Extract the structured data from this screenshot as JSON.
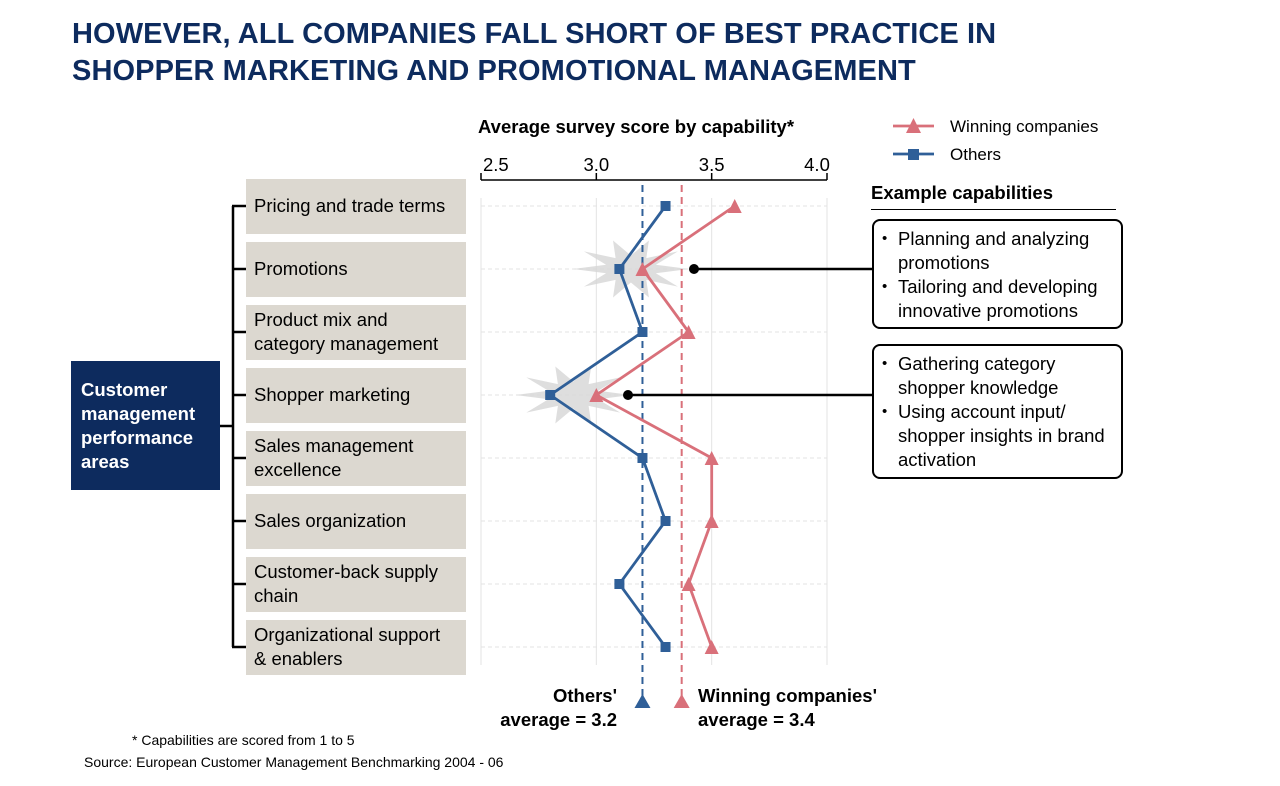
{
  "title": {
    "line1": "HOWEVER, ALL COMPANIES FALL SHORT OF BEST PRACTICE IN",
    "line2": "SHOPPER MARKETING AND PROMOTIONAL MANAGEMENT"
  },
  "group_label": [
    "Customer",
    "management",
    "performance",
    "areas"
  ],
  "legend": {
    "winning": "Winning companies",
    "others": "Others"
  },
  "example": {
    "title": "Example capabilities",
    "promotions": [
      "Planning and analyzing promotions",
      "Tailoring and developing innovative promotions"
    ],
    "shopper": [
      "Gathering category shopper knowledge",
      "Using account input/ shopper insights in brand activation"
    ]
  },
  "averages": {
    "others_label_1": "Others'",
    "others_label_2": "average = 3.2",
    "winning_label_1": "Winning companies'",
    "winning_label_2": "average  =  3.4"
  },
  "footnotes": {
    "note": "* Capabilities are scored from 1 to 5",
    "source": "Source: European Customer Management Benchmarking 2004 - 06"
  },
  "colors": {
    "winning": "#d9707a",
    "others": "#2f5f98",
    "navy": "#0d2b5e",
    "box": "#dcd8d0"
  },
  "chart_data": {
    "type": "line",
    "orientation": "horizontal",
    "title": "Average survey score by capability*",
    "xlim": [
      2.5,
      4.0
    ],
    "xticks": [
      2.5,
      3.0,
      3.5,
      4.0
    ],
    "tick_labels": [
      "2.5",
      "3.0",
      "3.5",
      "4.0"
    ],
    "categories": [
      "Pricing and trade terms",
      "Promotions",
      "Product mix and category management",
      "Shopper marketing",
      "Sales management excellence",
      "Sales organization",
      "Customer-back supply chain",
      "Organizational support & enablers"
    ],
    "category_lines": [
      [
        "Pricing and trade terms"
      ],
      [
        "Promotions"
      ],
      [
        "Product mix and",
        "category management"
      ],
      [
        "Shopper marketing"
      ],
      [
        "Sales management",
        "excellence"
      ],
      [
        "Sales organization"
      ],
      [
        "Customer-back supply",
        "chain"
      ],
      [
        "Organizational support",
        "& enablers"
      ]
    ],
    "series": [
      {
        "name": "Winning companies",
        "marker": "triangle",
        "color": "#d9707a",
        "values": [
          3.6,
          3.2,
          3.4,
          3.0,
          3.5,
          3.5,
          3.4,
          3.5
        ],
        "average": 3.37
      },
      {
        "name": "Others",
        "marker": "square",
        "color": "#2f5f98",
        "values": [
          3.3,
          3.1,
          3.2,
          2.8,
          3.2,
          3.3,
          3.1,
          3.3
        ],
        "average": 3.2
      }
    ],
    "highlighted": [
      "Promotions",
      "Shopper marketing"
    ]
  }
}
